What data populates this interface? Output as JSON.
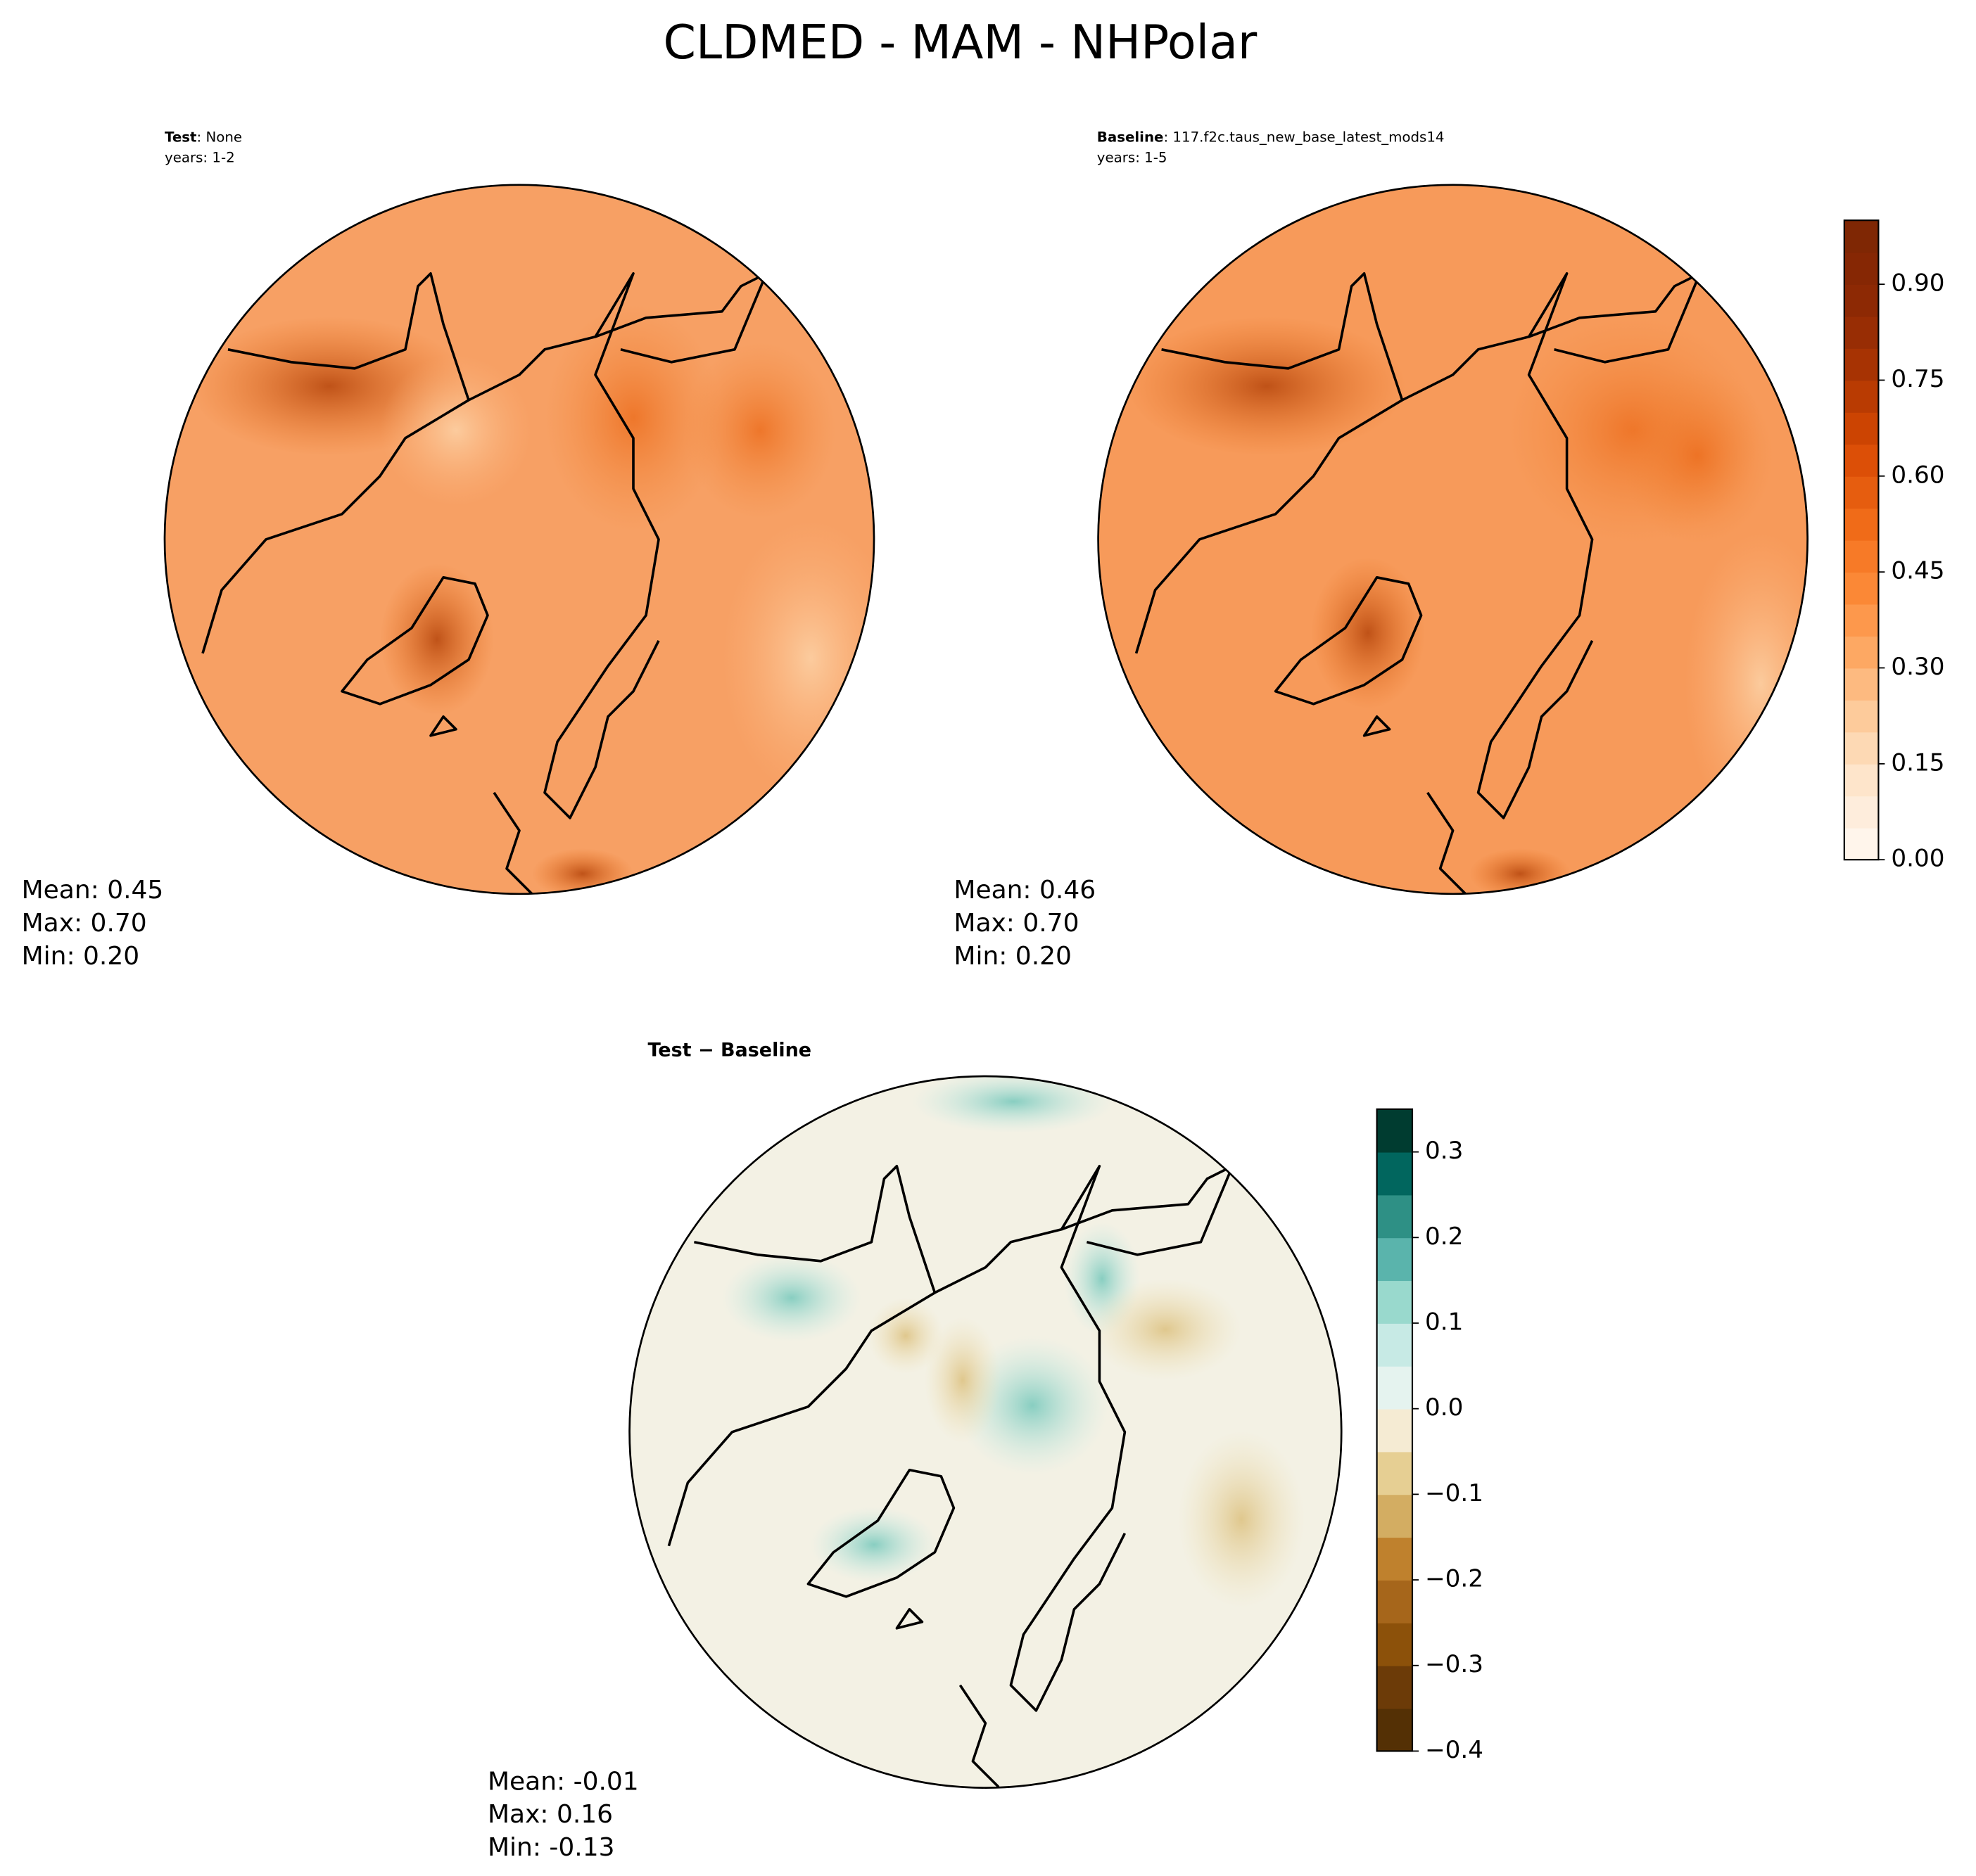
{
  "figure": {
    "title": "CLDMED - MAM - NHPolar",
    "panels": [
      {
        "tag": "Test",
        "run": ": None",
        "years": "years: 1-2",
        "stats": [
          "Mean:  0.45",
          "Max:  0.70",
          "Min:  0.20"
        ]
      },
      {
        "tag": "Baseline",
        "run": ": 117.f2c.taus_new_base_latest_mods14",
        "years": "years: 1-5",
        "stats": [
          "Mean:  0.46",
          "Max:  0.70",
          "Min:  0.20"
        ]
      },
      {
        "tag": "Test − Baseline",
        "stats": [
          "Mean: -0.01",
          "Max:  0.16",
          "Min: -0.13"
        ]
      }
    ],
    "colorbars": [
      {
        "lim": [
          0,
          1
        ],
        "ticks": [
          {
            "value": 0,
            "label": "0.00"
          },
          {
            "value": 0.15,
            "label": "0.15"
          },
          {
            "value": 0.3,
            "label": "0.30"
          },
          {
            "value": 0.45,
            "label": "0.45"
          },
          {
            "value": 0.6,
            "label": "0.60"
          },
          {
            "value": 0.75,
            "label": "0.75"
          },
          {
            "value": 0.9,
            "label": "0.90"
          }
        ],
        "colors": [
          "#fff5eb",
          "#feeddc",
          "#fee5cb",
          "#fdd9b4",
          "#fdcb9b",
          "#fdba80",
          "#fda863",
          "#fd984c",
          "#fb8836",
          "#f77a27",
          "#f06b18",
          "#e65d0f",
          "#dc4f07",
          "#cc4402",
          "#b93b02",
          "#a73303",
          "#982d04",
          "#8d2904",
          "#862704",
          "#7f2704"
        ]
      },
      {
        "lim": [
          -0.4,
          0.35
        ],
        "ticks": [
          {
            "value": -0.4,
            "label": "−0.4"
          },
          {
            "value": -0.3,
            "label": "−0.3"
          },
          {
            "value": -0.2,
            "label": "−0.2"
          },
          {
            "value": -0.1,
            "label": "−0.1"
          },
          {
            "value": 0,
            "label": "0.0"
          },
          0.1,
          0.2,
          0.3
        ],
        "colors": [
          "#543005",
          "#6c3b08",
          "#8c510a",
          "#a6661b",
          "#bf812d",
          "#d3ad62",
          "#e6cf93",
          "#f5ebd3",
          "#e5f3ef",
          "#c7eae5",
          "#99d9cd",
          "#5ab4ac",
          "#2e9085",
          "#01665e",
          "#003c30"
        ]
      }
    ]
  }
}
